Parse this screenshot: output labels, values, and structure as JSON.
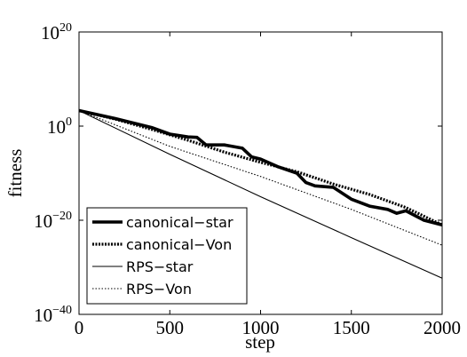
{
  "chart_data": {
    "type": "line",
    "xlabel": "step",
    "ylabel": "fitness",
    "xlim": [
      0,
      2000
    ],
    "ylim": [
      1e-40,
      1e+20
    ],
    "yscale": "log",
    "grid": false,
    "legend_position": "bottom-left",
    "x_ticks": [
      {
        "value": 0,
        "label": "0"
      },
      {
        "value": 500,
        "label": "500"
      },
      {
        "value": 1000,
        "label": "1000"
      },
      {
        "value": 1500,
        "label": "1500"
      },
      {
        "value": 2000,
        "label": "2000"
      }
    ],
    "y_ticks": [
      {
        "value": 1e+20,
        "base": "10",
        "exp": "20"
      },
      {
        "value": 1,
        "base": "10",
        "exp": "0"
      },
      {
        "value": 1e-20,
        "base": "10",
        "exp": "−20"
      },
      {
        "value": 1e-40,
        "base": "10",
        "exp": "−40"
      }
    ],
    "series": [
      {
        "name": "canonical−star",
        "style": "thick-solid",
        "color": "#000000",
        "x": [
          0,
          200,
          400,
          500,
          600,
          650,
          700,
          800,
          900,
          950,
          1000,
          1100,
          1200,
          1250,
          1300,
          1400,
          1500,
          1600,
          1700,
          1750,
          1800,
          1900,
          2000
        ],
        "y": [
          2000.0,
          40.0,
          0.5,
          0.02,
          0.005,
          0.004,
          0.0001,
          0.0001,
          2e-05,
          3e-07,
          1e-07,
          2e-09,
          1e-10,
          1e-12,
          2e-13,
          1e-13,
          3e-16,
          1e-17,
          2e-18,
          3e-19,
          1e-18,
          1e-20,
          1e-21
        ]
      },
      {
        "name": "canonical−Von",
        "style": "thick-dotted",
        "color": "#000000",
        "x": [
          0,
          200,
          400,
          600,
          800,
          1000,
          1200,
          1400,
          1600,
          1800,
          2000
        ],
        "y": [
          2000.0,
          30.0,
          0.2,
          0.001,
          3e-06,
          2e-08,
          2e-10,
          5e-13,
          3e-15,
          5e-18,
          1e-21
        ]
      },
      {
        "name": "RPS−star",
        "style": "thin-solid",
        "color": "#000000",
        "x": [
          0,
          500,
          1000,
          1500,
          2000
        ],
        "y": [
          2000.0,
          1e-06,
          1e-15,
          2e-24,
          5e-33
        ]
      },
      {
        "name": "RPS−Von",
        "style": "thin-dotted",
        "color": "#000000",
        "x": [
          0,
          500,
          1000,
          1500,
          2000
        ],
        "y": [
          2000.0,
          5e-05,
          2e-11,
          2e-18,
          5e-26
        ]
      }
    ]
  }
}
